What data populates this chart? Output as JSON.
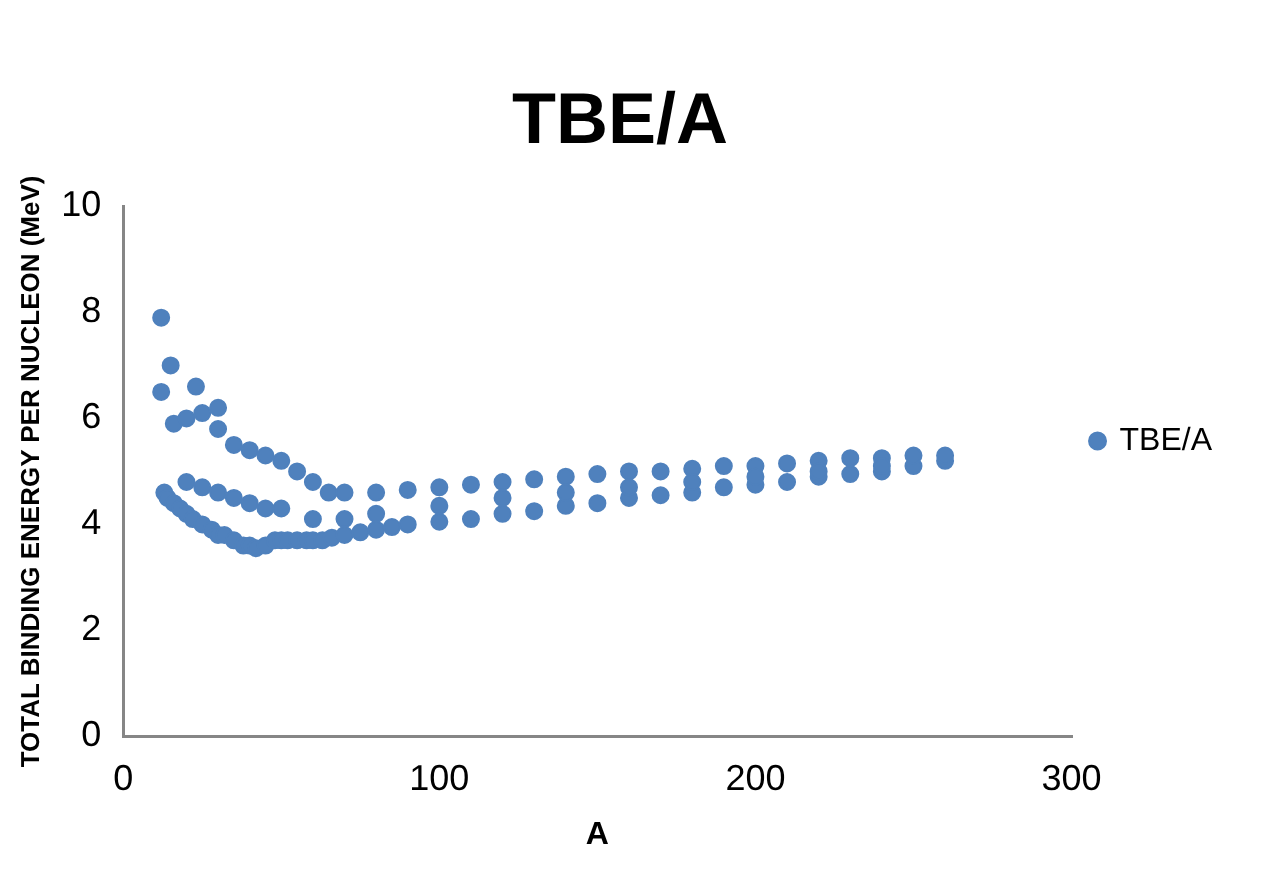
{
  "chart_data": {
    "type": "scatter",
    "title": "TBE/A",
    "xlabel": "A",
    "ylabel": "TOTAL BINDING ENERGY PER NUCLEON (MeV)",
    "xlim": [
      0,
      300
    ],
    "xticks": [
      0,
      100,
      200,
      300
    ],
    "ylim": [
      0,
      10
    ],
    "yticks": [
      0,
      2,
      4,
      6,
      8,
      10
    ],
    "grid": false,
    "legend": "right",
    "marker": "circle",
    "series": [
      {
        "name": "TBE/A",
        "color": "#4f81bd",
        "x": [
          12,
          15,
          12,
          23,
          30,
          13,
          14,
          16,
          18,
          20,
          22,
          25,
          28,
          30,
          32,
          35,
          38,
          40,
          42,
          45,
          48,
          50,
          52,
          55,
          58,
          60,
          63,
          66,
          70,
          75,
          80,
          85,
          90,
          100,
          110,
          120,
          130,
          140,
          150,
          160,
          170,
          180,
          190,
          200,
          210,
          220,
          230,
          240,
          250,
          260,
          16,
          20,
          25,
          30,
          35,
          40,
          45,
          50,
          55,
          60,
          65,
          70,
          80,
          90,
          100,
          110,
          120,
          130,
          140,
          150,
          160,
          170,
          180,
          190,
          200,
          210,
          220,
          230,
          240,
          250,
          260,
          20,
          25,
          30,
          35,
          40,
          45,
          50,
          60,
          70,
          80,
          100,
          120,
          140,
          160,
          180,
          200,
          220,
          240
        ],
        "values": [
          7.9,
          7.0,
          6.5,
          6.6,
          6.2,
          4.6,
          4.5,
          4.4,
          4.3,
          4.2,
          4.1,
          4.0,
          3.9,
          3.8,
          3.8,
          3.7,
          3.6,
          3.6,
          3.55,
          3.6,
          3.7,
          3.7,
          3.7,
          3.7,
          3.7,
          3.7,
          3.7,
          3.75,
          3.8,
          3.85,
          3.9,
          3.95,
          4.0,
          4.05,
          4.1,
          4.2,
          4.25,
          4.35,
          4.4,
          4.5,
          4.55,
          4.6,
          4.7,
          4.75,
          4.8,
          4.9,
          4.95,
          5.0,
          5.1,
          5.2,
          5.9,
          6.0,
          6.1,
          5.8,
          5.5,
          5.4,
          5.3,
          5.2,
          5.0,
          4.8,
          4.6,
          4.6,
          4.6,
          4.65,
          4.7,
          4.75,
          4.8,
          4.85,
          4.9,
          4.95,
          5.0,
          5.0,
          5.05,
          5.1,
          5.1,
          5.15,
          5.2,
          5.25,
          5.25,
          5.3,
          5.3,
          4.8,
          4.7,
          4.6,
          4.5,
          4.4,
          4.3,
          4.3,
          4.1,
          4.1,
          4.2,
          4.35,
          4.5,
          4.6,
          4.7,
          4.8,
          4.9,
          5.0,
          5.1
        ]
      }
    ]
  }
}
